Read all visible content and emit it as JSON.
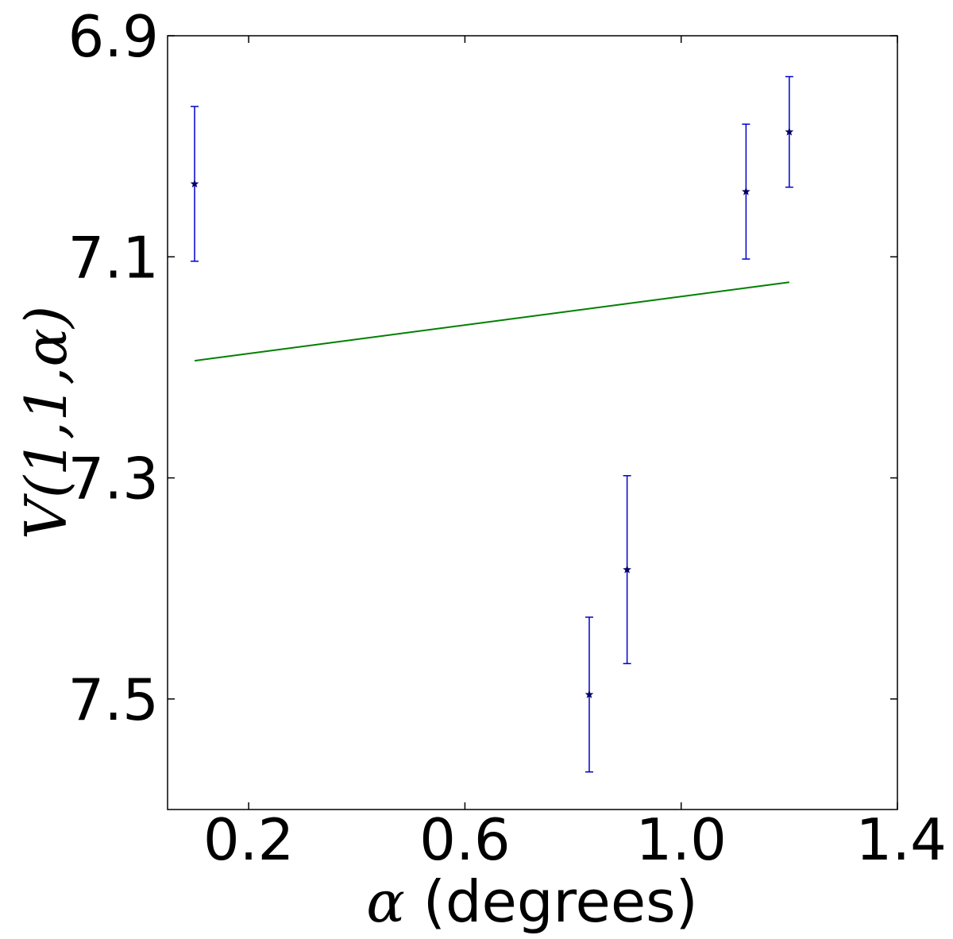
{
  "chart_data": {
    "type": "scatter",
    "xlabel": {
      "symbol": "α",
      "text": " (degrees)"
    },
    "ylabel": "V(1,1,α)",
    "xlim": [
      0.05,
      1.4
    ],
    "ylim": [
      7.6,
      6.9
    ],
    "y_inverted": true,
    "xticks": [
      {
        "value": 0.2,
        "label": "0.2"
      },
      {
        "value": 0.6,
        "label": "0.6"
      },
      {
        "value": 1.0,
        "label": "1.0"
      },
      {
        "value": 1.4,
        "label": "1.4"
      }
    ],
    "yticks": [
      {
        "value": 6.9,
        "label": "6.9"
      },
      {
        "value": 7.1,
        "label": "7.1"
      },
      {
        "value": 7.3,
        "label": "7.3"
      },
      {
        "value": 7.5,
        "label": "7.5"
      }
    ],
    "grid": false,
    "series": [
      {
        "kind": "errorbar",
        "color": "#0000cc",
        "marker_color": "#000066",
        "points": [
          {
            "x": 0.1,
            "y": 7.034,
            "yerr": 0.07
          },
          {
            "x": 0.83,
            "y": 7.496,
            "yerr": 0.07
          },
          {
            "x": 0.9,
            "y": 7.383,
            "yerr": 0.085
          },
          {
            "x": 1.12,
            "y": 7.041,
            "yerr": 0.061
          },
          {
            "x": 1.2,
            "y": 6.987,
            "yerr": 0.05
          }
        ]
      },
      {
        "kind": "line",
        "color": "#008000",
        "points": [
          {
            "x": 0.1,
            "y": 7.194
          },
          {
            "x": 1.2,
            "y": 7.123
          }
        ]
      }
    ]
  }
}
